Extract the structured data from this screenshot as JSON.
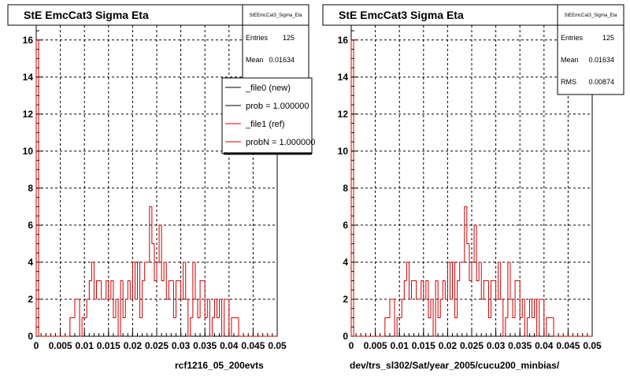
{
  "colors": {
    "data": "#cc0000",
    "ref": "#cc0000",
    "new": "#000000",
    "grid": "#000000",
    "axis": "#000000"
  },
  "panels": [
    {
      "title": "StE EmcCat3 Sigma Eta",
      "stats": {
        "title": "StEEmcCat3_Sigma_Eta",
        "rows": [
          {
            "label": "Entries",
            "value": "125"
          },
          {
            "label": "Mean",
            "value": "0.01634"
          }
        ]
      },
      "legend": [
        {
          "label": "_file0 (new)",
          "color": "#000000"
        },
        {
          "label": "prob = 1.000000",
          "color": "#000000"
        },
        {
          "label": "_file1 (ref)",
          "color": "#cc0000"
        },
        {
          "label": "probN = 1.000000",
          "color": "#cc0000"
        }
      ],
      "footer": "rcf1216_05_200evts"
    },
    {
      "title": "StE EmcCat3 Sigma Eta",
      "stats": {
        "title": "StEEmcCat3_Sigma_Eta",
        "rows": [
          {
            "label": "Entries",
            "value": "125"
          },
          {
            "label": "Mean",
            "value": "0.01634"
          },
          {
            "label": "RMS",
            "value": "0.00874"
          }
        ]
      },
      "legend": [],
      "footer": "dev/trs_sl302/Sat/year_2005/cucu200_minbias/"
    }
  ],
  "chart_data": [
    {
      "type": "bar",
      "histogram": true,
      "title": "StE EmcCat3 Sigma Eta",
      "xlim": [
        0,
        0.05
      ],
      "ylim": [
        0,
        16.8
      ],
      "xticks": [
        "0",
        "0.005",
        "0.01",
        "0.015",
        "0.02",
        "0.025",
        "0.03",
        "0.035",
        "0.04",
        "0.045",
        "0.05"
      ],
      "yticks": [
        "0",
        "2",
        "4",
        "6",
        "8",
        "10",
        "12",
        "14",
        "16"
      ],
      "bin_width": 0.0005,
      "series": [
        {
          "name": "_file1 (ref)",
          "values": [
            16,
            0,
            0,
            0,
            0,
            0,
            0,
            0,
            0,
            0,
            0,
            0,
            0,
            0,
            1,
            1,
            2,
            2,
            0,
            1,
            1,
            2,
            3,
            4,
            2,
            3,
            3,
            2,
            2,
            3,
            2,
            3,
            1,
            2,
            0,
            3,
            1,
            2,
            3,
            2,
            4,
            2,
            4,
            1,
            3,
            4,
            4,
            7,
            5,
            3,
            4,
            6,
            3,
            4,
            2,
            3,
            3,
            1,
            3,
            3,
            2,
            4,
            2,
            0,
            1,
            4,
            2,
            1,
            3,
            3,
            1,
            2,
            0,
            1,
            2,
            1,
            2,
            0,
            2,
            2,
            0,
            1,
            1,
            1,
            0,
            0,
            0,
            0,
            0,
            0,
            0,
            0,
            0,
            0,
            0,
            0,
            0,
            0,
            0,
            0
          ]
        }
      ]
    },
    {
      "type": "bar",
      "histogram": true,
      "title": "StE EmcCat3 Sigma Eta",
      "xlim": [
        0,
        0.05
      ],
      "ylim": [
        0,
        16.8
      ],
      "xticks": [
        "0",
        "0.005",
        "0.01",
        "0.015",
        "0.02",
        "0.025",
        "0.03",
        "0.035",
        "0.04",
        "0.045",
        "0.05"
      ],
      "yticks": [
        "0",
        "2",
        "4",
        "6",
        "8",
        "10",
        "12",
        "14",
        "16"
      ],
      "bin_width": 0.0005,
      "series": [
        {
          "values": [
            16,
            0,
            0,
            0,
            0,
            0,
            0,
            0,
            0,
            0,
            0,
            0,
            0,
            0,
            1,
            1,
            2,
            2,
            0,
            1,
            1,
            2,
            3,
            4,
            2,
            3,
            3,
            2,
            2,
            3,
            2,
            3,
            1,
            2,
            0,
            3,
            1,
            2,
            3,
            2,
            4,
            2,
            4,
            1,
            3,
            4,
            4,
            7,
            5,
            3,
            4,
            6,
            3,
            4,
            2,
            3,
            3,
            1,
            3,
            3,
            2,
            4,
            2,
            0,
            1,
            4,
            2,
            1,
            3,
            3,
            1,
            2,
            0,
            1,
            2,
            1,
            2,
            0,
            2,
            2,
            0,
            1,
            1,
            1,
            0,
            0,
            0,
            0,
            0,
            0,
            0,
            0,
            0,
            0,
            0,
            0,
            0,
            0,
            0,
            0
          ]
        }
      ]
    }
  ]
}
